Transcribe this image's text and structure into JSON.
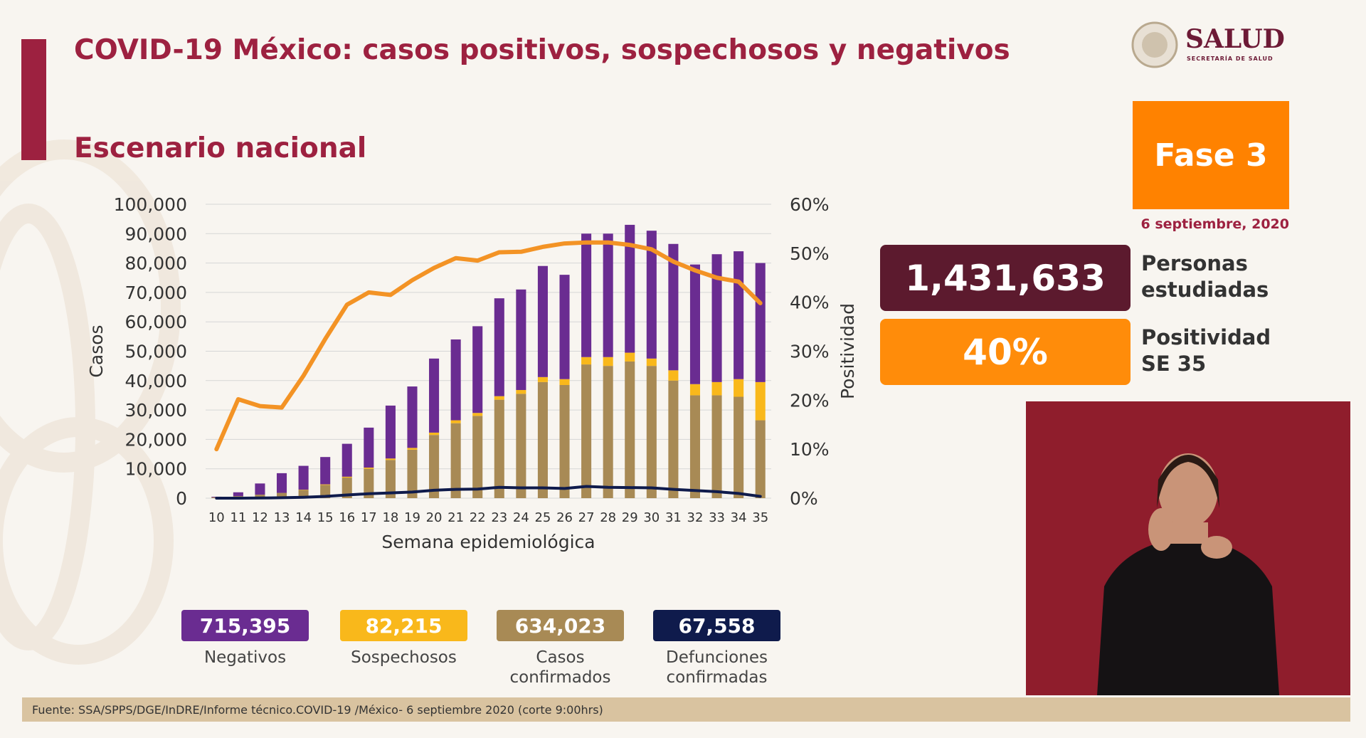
{
  "header": {
    "title": "COVID-19 México: casos positivos, sospechosos y negativos",
    "subtitle": "Escenario nacional",
    "logo_text": "SALUD",
    "logo_subtext": "SECRETARÍA DE SALUD"
  },
  "phase": {
    "label": "Fase 3",
    "date": "6 septiembre, 2020"
  },
  "stats": [
    {
      "value": "1,431,633",
      "label": "Personas estudiadas"
    },
    {
      "value": "40%",
      "label": "Positividad SE 35"
    }
  ],
  "footer": "Fuente: SSA/SPPS/DGE/InDRE/Informe técnico.COVID-19 /México- 6 septiembre 2020 (corte 9:00hrs)",
  "chart_data": {
    "type": "bar",
    "xlabel": "Semana epidemiológica",
    "ylabel": "Casos",
    "y2label": "Positividad",
    "categories": [
      "10",
      "11",
      "12",
      "13",
      "14",
      "15",
      "16",
      "17",
      "18",
      "19",
      "20",
      "21",
      "22",
      "23",
      "24",
      "25",
      "26",
      "27",
      "28",
      "29",
      "30",
      "31",
      "32",
      "33",
      "34",
      "35"
    ],
    "ylim": [
      0,
      100000
    ],
    "yticks": [
      {
        "value": 0,
        "label": "0"
      },
      {
        "value": 10000,
        "label": "10,000"
      },
      {
        "value": 20000,
        "label": "20,000"
      },
      {
        "value": 30000,
        "label": "30,000"
      },
      {
        "value": 40000,
        "label": "40,000"
      },
      {
        "value": 50000,
        "label": "50,000"
      },
      {
        "value": 60000,
        "label": "60,000"
      },
      {
        "value": 70000,
        "label": "70,000"
      },
      {
        "value": 80000,
        "label": "80,000"
      },
      {
        "value": 90000,
        "label": "90,000"
      },
      {
        "value": 100000,
        "label": "100,000"
      }
    ],
    "y2lim": [
      0,
      60
    ],
    "y2ticks": [
      {
        "value": 0,
        "label": "0%"
      },
      {
        "value": 10,
        "label": "10%"
      },
      {
        "value": 20,
        "label": "20%"
      },
      {
        "value": 30,
        "label": "30%"
      },
      {
        "value": 40,
        "label": "40%"
      },
      {
        "value": 50,
        "label": "50%"
      },
      {
        "value": 60,
        "label": "60%"
      }
    ],
    "grid": true,
    "series": [
      {
        "name": "Casos confirmados",
        "kind": "bar",
        "color": "#a88a55",
        "total": "634,023",
        "values": [
          300,
          700,
          1200,
          1800,
          2800,
          4500,
          7000,
          10000,
          13000,
          16500,
          21500,
          25500,
          28000,
          33500,
          35500,
          39500,
          38500,
          45500,
          45000,
          46500,
          45000,
          40000,
          35000,
          35000,
          34500,
          26500
        ]
      },
      {
        "name": "Sospechosos",
        "kind": "bar",
        "color": "#f9b81b",
        "total": "82,215",
        "values": [
          0,
          0,
          0,
          0,
          100,
          200,
          300,
          400,
          500,
          600,
          800,
          1000,
          1000,
          1200,
          1300,
          1700,
          2000,
          2500,
          3000,
          3000,
          2500,
          3500,
          3800,
          4500,
          6000,
          13000
        ]
      },
      {
        "name": "Negativos",
        "kind": "bar",
        "color": "#6a2c91",
        "total": "715,395",
        "values": [
          200,
          1300,
          3800,
          6700,
          8100,
          9300,
          11200,
          13600,
          18000,
          20900,
          25200,
          27500,
          29500,
          33300,
          34200,
          37800,
          35500,
          42000,
          42000,
          43500,
          43500,
          43000,
          40700,
          43500,
          43500,
          40500
        ]
      },
      {
        "name": "Defunciones confirmadas",
        "kind": "line",
        "color": "#0f1b4c",
        "total": "67,558",
        "values": [
          0,
          10,
          50,
          150,
          300,
          600,
          1100,
          1500,
          1800,
          2100,
          2700,
          3000,
          3100,
          3700,
          3500,
          3500,
          3300,
          4000,
          3700,
          3600,
          3500,
          3000,
          2600,
          2200,
          1600,
          600
        ]
      },
      {
        "kind": "line",
        "axis": "y2",
        "color": "#f39325",
        "values": [
          10,
          20.2,
          18.8,
          18.5,
          25,
          32.5,
          39.5,
          42,
          41.5,
          44.5,
          47,
          49,
          48.5,
          50.2,
          50.3,
          51.3,
          52,
          52.2,
          52.2,
          51.7,
          50.8,
          48.3,
          46.5,
          45,
          44.2,
          39.8
        ]
      }
    ],
    "legend_order": [
      2,
      1,
      0,
      3
    ]
  }
}
